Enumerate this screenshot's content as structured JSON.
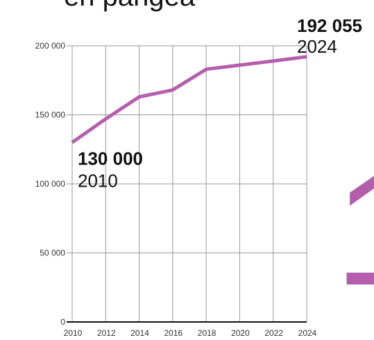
{
  "page": {
    "title_fragment": "en pangea"
  },
  "colors": {
    "series": "#b45fae",
    "grid": "#999999",
    "axis": "#111111",
    "text": "#111111",
    "tick_text": "#333333",
    "background": "#ffffff"
  },
  "decorations": {
    "big_glyph": "1"
  },
  "chart_data": {
    "type": "line",
    "title": "",
    "xlabel": "",
    "ylabel": "",
    "xlim": [
      2010,
      2024
    ],
    "ylim": [
      0,
      200000
    ],
    "grid": true,
    "legend": "none",
    "x_ticks": [
      2010,
      2012,
      2014,
      2016,
      2018,
      2020,
      2022,
      2024
    ],
    "x_tick_labels": [
      "2010",
      "2012",
      "2014",
      "2016",
      "2018",
      "2020",
      "2022",
      "2024"
    ],
    "x_gridlines": [
      2010,
      2012,
      2014,
      2016,
      2018,
      2020,
      2022,
      2024
    ],
    "y_ticks": [
      0,
      50000,
      100000,
      150000,
      200000
    ],
    "y_tick_labels": [
      "0",
      "50 000",
      "100 000",
      "150 000",
      "200 000"
    ],
    "y_gridlines": [
      50000,
      100000,
      150000,
      200000
    ],
    "x": [
      2010,
      2012,
      2014,
      2016,
      2018,
      2020,
      2022,
      2024
    ],
    "series": [
      {
        "values": [
          130000,
          147000,
          163000,
          168000,
          183000,
          186000,
          189000,
          192055
        ]
      }
    ],
    "annotations": [
      {
        "value_label": "130 000",
        "year_label": "2010",
        "x": 2010,
        "y": 130000,
        "position": "below-right"
      },
      {
        "value_label": "192 055",
        "year_label": "2024",
        "x": 2024,
        "y": 192055,
        "position": "above-left"
      }
    ]
  }
}
